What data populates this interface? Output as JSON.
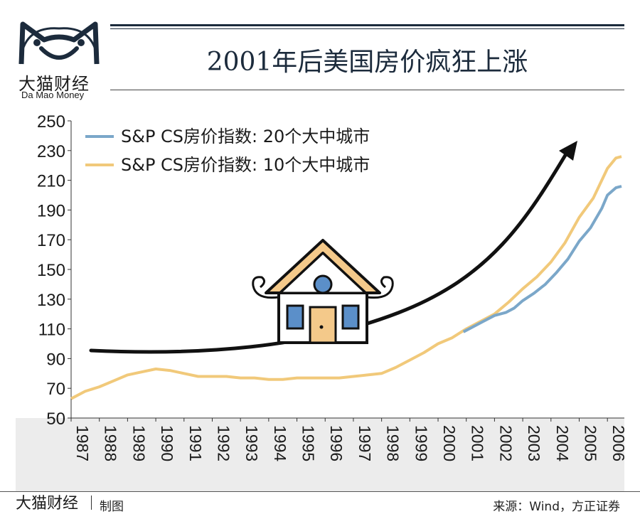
{
  "logo": {
    "name_cn": "大猫财经",
    "name_en": "Da Mao Money"
  },
  "title": "2001年后美国房价疯狂上涨",
  "footer": {
    "brand": "大猫财经",
    "made_by": "制图",
    "source": "来源：Wind，方正证券"
  },
  "colors": {
    "series_20": "#7ba7c9",
    "series_10": "#f1c97a",
    "arrow": "#111111",
    "navy": "#1c2b3c",
    "house_fill": "#f4c98a",
    "window_blue": "#5b8fc9"
  },
  "icons": [
    "cat-logo-icon",
    "house-icon",
    "trend-arrow-icon"
  ],
  "chart_data": {
    "type": "line",
    "title": "2001年后美国房价疯狂上涨",
    "xlabel": "",
    "ylabel": "",
    "ylim": [
      50,
      250
    ],
    "xlim": [
      1987,
      2006.6
    ],
    "yticks": [
      50,
      70,
      90,
      110,
      130,
      150,
      170,
      190,
      210,
      230,
      250
    ],
    "xticks": [
      "1987",
      "1988",
      "1989",
      "1990",
      "1991",
      "1992",
      "1993",
      "1994",
      "1995",
      "1996",
      "1997",
      "1998",
      "1999",
      "2000",
      "2001",
      "2002",
      "2003",
      "2004",
      "2005",
      "2006"
    ],
    "legend_position": "top-left",
    "grid": false,
    "series": [
      {
        "name": "S&P CS房价指数: 20个大中城市",
        "x": [
          2000.9,
          2001.2,
          2001.6,
          2002.0,
          2002.4,
          2002.7,
          2003.0,
          2003.4,
          2003.8,
          2004.2,
          2004.6,
          2005.0,
          2005.4,
          2005.8,
          2006.0,
          2006.3,
          2006.5
        ],
        "values": [
          108,
          111,
          115,
          119,
          121,
          124,
          129,
          134,
          140,
          148,
          157,
          169,
          178,
          191,
          200,
          205,
          206
        ]
      },
      {
        "name": "S&P CS房价指数: 10个大中城市",
        "x": [
          1987.0,
          1987.5,
          1988.0,
          1988.5,
          1989.0,
          1989.5,
          1990.0,
          1990.5,
          1991.0,
          1991.5,
          1992.0,
          1992.5,
          1993.0,
          1993.5,
          1994.0,
          1994.5,
          1995.0,
          1995.5,
          1996.0,
          1996.5,
          1997.0,
          1997.5,
          1998.0,
          1998.5,
          1999.0,
          1999.5,
          2000.0,
          2000.5,
          2001.0,
          2001.5,
          2002.0,
          2002.5,
          2003.0,
          2003.5,
          2004.0,
          2004.5,
          2005.0,
          2005.5,
          2006.0,
          2006.3,
          2006.5
        ],
        "values": [
          63,
          68,
          71,
          75,
          79,
          81,
          83,
          82,
          80,
          78,
          78,
          78,
          77,
          77,
          76,
          76,
          77,
          77,
          77,
          77,
          78,
          79,
          80,
          84,
          89,
          94,
          100,
          104,
          110,
          115,
          120,
          128,
          137,
          145,
          155,
          168,
          185,
          198,
          218,
          225,
          226
        ]
      }
    ]
  }
}
